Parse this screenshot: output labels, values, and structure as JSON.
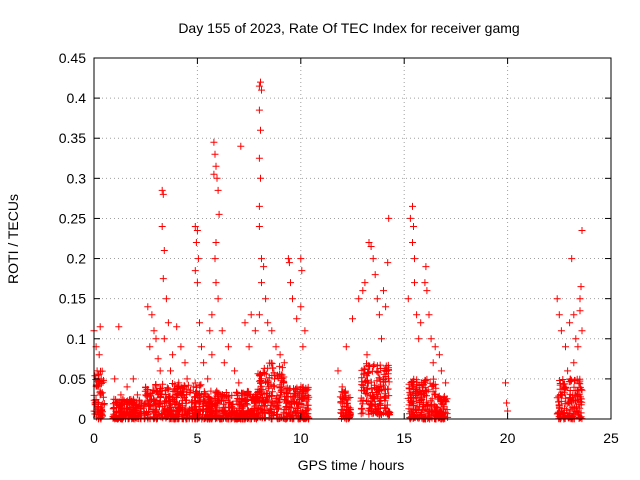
{
  "chart_data": {
    "type": "scatter",
    "title": "Day 155 of 2023, Rate Of TEC Index for receiver gamg",
    "xlabel": "GPS time / hours",
    "ylabel": "ROTI / TECUs",
    "xlim": [
      0,
      25
    ],
    "ylim": [
      0,
      0.45
    ],
    "xticks": [
      0,
      5,
      10,
      15,
      20,
      25
    ],
    "xtick_labels": [
      "0",
      "5",
      "10",
      "15",
      "20",
      "25"
    ],
    "yticks": [
      0,
      0.05,
      0.1,
      0.15,
      0.2,
      0.25,
      0.3,
      0.35,
      0.4,
      0.45
    ],
    "ytick_labels": [
      "0",
      "0.05",
      "0.1",
      "0.15",
      "0.2",
      "0.25",
      "0.3",
      "0.35",
      "0.4",
      "0.45"
    ],
    "grid": true,
    "marker": "+",
    "marker_color": "#ff0000",
    "series": [
      {
        "name": "",
        "points": [
          [
            0.0,
            0.11
          ],
          [
            0.1,
            0.09
          ],
          [
            0.15,
            0.06
          ],
          [
            0.2,
            0.04
          ],
          [
            0.25,
            0.08
          ],
          [
            0.3,
            0.115
          ],
          [
            0.35,
            0.05
          ],
          [
            0.05,
            0.02
          ],
          [
            0.2,
            0.01
          ],
          [
            0.3,
            0.03
          ],
          [
            1.2,
            0.115
          ],
          [
            1.0,
            0.05
          ],
          [
            1.3,
            0.03
          ],
          [
            1.6,
            0.04
          ],
          [
            1.9,
            0.05
          ],
          [
            2.1,
            0.03
          ],
          [
            2.3,
            0.02
          ],
          [
            2.6,
            0.14
          ],
          [
            2.8,
            0.13
          ],
          [
            2.9,
            0.11
          ],
          [
            3.0,
            0.1
          ],
          [
            3.1,
            0.075
          ],
          [
            3.2,
            0.06
          ],
          [
            2.7,
            0.09
          ],
          [
            3.3,
            0.285
          ],
          [
            3.35,
            0.28
          ],
          [
            3.3,
            0.24
          ],
          [
            3.4,
            0.21
          ],
          [
            3.35,
            0.175
          ],
          [
            3.5,
            0.15
          ],
          [
            3.6,
            0.12
          ],
          [
            3.4,
            0.1
          ],
          [
            3.8,
            0.08
          ],
          [
            3.7,
            0.06
          ],
          [
            4.0,
            0.115
          ],
          [
            4.2,
            0.09
          ],
          [
            4.4,
            0.07
          ],
          [
            4.1,
            0.045
          ],
          [
            4.5,
            0.05
          ],
          [
            4.8,
            0.04
          ],
          [
            4.9,
            0.24
          ],
          [
            5.0,
            0.235
          ],
          [
            4.95,
            0.22
          ],
          [
            5.05,
            0.2
          ],
          [
            4.9,
            0.185
          ],
          [
            5.0,
            0.17
          ],
          [
            5.1,
            0.12
          ],
          [
            5.2,
            0.09
          ],
          [
            5.3,
            0.07
          ],
          [
            5.5,
            0.05
          ],
          [
            5.6,
            0.11
          ],
          [
            5.7,
            0.08
          ],
          [
            5.8,
            0.345
          ],
          [
            5.85,
            0.33
          ],
          [
            5.9,
            0.315
          ],
          [
            5.8,
            0.305
          ],
          [
            5.95,
            0.3
          ],
          [
            6.0,
            0.285
          ],
          [
            6.05,
            0.255
          ],
          [
            5.9,
            0.22
          ],
          [
            5.85,
            0.2
          ],
          [
            5.9,
            0.17
          ],
          [
            6.0,
            0.15
          ],
          [
            5.7,
            0.13
          ],
          [
            6.2,
            0.11
          ],
          [
            6.5,
            0.09
          ],
          [
            6.8,
            0.06
          ],
          [
            7.0,
            0.045
          ],
          [
            6.3,
            0.07
          ],
          [
            7.1,
            0.34
          ],
          [
            7.3,
            0.12
          ],
          [
            7.5,
            0.09
          ],
          [
            7.6,
            0.13
          ],
          [
            7.8,
            0.11
          ],
          [
            8.0,
            0.415
          ],
          [
            8.05,
            0.42
          ],
          [
            8.1,
            0.41
          ],
          [
            8.0,
            0.385
          ],
          [
            8.05,
            0.36
          ],
          [
            8.0,
            0.325
          ],
          [
            8.05,
            0.3
          ],
          [
            8.0,
            0.265
          ],
          [
            8.0,
            0.24
          ],
          [
            8.1,
            0.2
          ],
          [
            8.2,
            0.19
          ],
          [
            8.1,
            0.17
          ],
          [
            8.3,
            0.15
          ],
          [
            8.0,
            0.13
          ],
          [
            8.4,
            0.12
          ],
          [
            8.6,
            0.11
          ],
          [
            8.8,
            0.09
          ],
          [
            9.0,
            0.08
          ],
          [
            9.2,
            0.07
          ],
          [
            9.4,
            0.2
          ],
          [
            9.45,
            0.195
          ],
          [
            9.5,
            0.17
          ],
          [
            9.6,
            0.15
          ],
          [
            9.8,
            0.125
          ],
          [
            10.0,
            0.2
          ],
          [
            10.05,
            0.185
          ],
          [
            10.0,
            0.14
          ],
          [
            10.2,
            0.11
          ],
          [
            10.1,
            0.09
          ],
          [
            11.8,
            0.06
          ],
          [
            12.0,
            0.04
          ],
          [
            12.2,
            0.09
          ],
          [
            12.1,
            0.02
          ],
          [
            12.5,
            0.125
          ],
          [
            12.8,
            0.15
          ],
          [
            13.0,
            0.16
          ],
          [
            13.1,
            0.17
          ],
          [
            13.3,
            0.22
          ],
          [
            13.4,
            0.215
          ],
          [
            13.5,
            0.2
          ],
          [
            13.6,
            0.18
          ],
          [
            13.7,
            0.15
          ],
          [
            13.8,
            0.13
          ],
          [
            14.0,
            0.16
          ],
          [
            14.1,
            0.14
          ],
          [
            14.2,
            0.195
          ],
          [
            14.25,
            0.25
          ],
          [
            13.9,
            0.1
          ],
          [
            13.2,
            0.08
          ],
          [
            15.2,
            0.15
          ],
          [
            15.3,
            0.25
          ],
          [
            15.4,
            0.265
          ],
          [
            15.45,
            0.24
          ],
          [
            15.5,
            0.2
          ],
          [
            15.4,
            0.22
          ],
          [
            15.5,
            0.17
          ],
          [
            15.6,
            0.13
          ],
          [
            15.7,
            0.1
          ],
          [
            15.8,
            0.12
          ],
          [
            16.0,
            0.17
          ],
          [
            16.05,
            0.19
          ],
          [
            16.1,
            0.16
          ],
          [
            16.2,
            0.13
          ],
          [
            16.3,
            0.1
          ],
          [
            16.4,
            0.07
          ],
          [
            16.5,
            0.09
          ],
          [
            16.7,
            0.08
          ],
          [
            16.8,
            0.06
          ],
          [
            17.0,
            0.045
          ],
          [
            19.9,
            0.045
          ],
          [
            19.95,
            0.02
          ],
          [
            20.0,
            0.01
          ],
          [
            22.4,
            0.15
          ],
          [
            22.5,
            0.13
          ],
          [
            22.6,
            0.11
          ],
          [
            22.8,
            0.09
          ],
          [
            23.0,
            0.12
          ],
          [
            23.1,
            0.2
          ],
          [
            23.2,
            0.13
          ],
          [
            23.3,
            0.1
          ],
          [
            23.4,
            0.09
          ],
          [
            23.5,
            0.15
          ],
          [
            23.55,
            0.165
          ],
          [
            23.6,
            0.235
          ],
          [
            23.5,
            0.135
          ],
          [
            23.6,
            0.11
          ],
          [
            23.2,
            0.07
          ],
          [
            22.9,
            0.06
          ]
        ],
        "dense_bands": [
          [
            0.0,
            0.5,
            0.0,
            0.06
          ],
          [
            0.9,
            2.3,
            0.0,
            0.025
          ],
          [
            2.4,
            5.2,
            0.0,
            0.045
          ],
          [
            5.2,
            7.9,
            0.0,
            0.035
          ],
          [
            7.9,
            9.2,
            0.0,
            0.07
          ],
          [
            9.2,
            10.4,
            0.0,
            0.04
          ],
          [
            11.9,
            12.4,
            0.0,
            0.035
          ],
          [
            12.9,
            14.3,
            0.005,
            0.07
          ],
          [
            15.2,
            16.6,
            0.0,
            0.05
          ],
          [
            16.6,
            17.1,
            0.0,
            0.03
          ],
          [
            22.4,
            23.6,
            0.0,
            0.05
          ]
        ]
      }
    ]
  }
}
